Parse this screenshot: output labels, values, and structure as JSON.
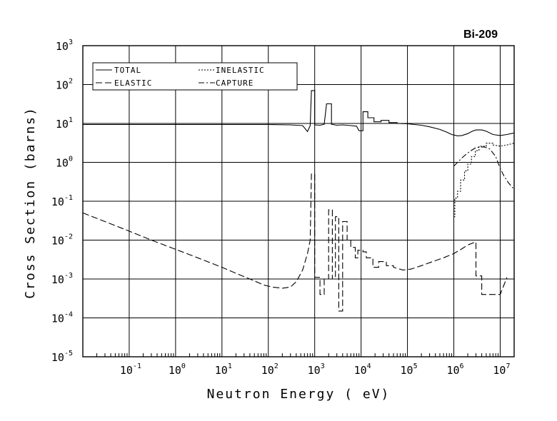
{
  "chart_data": {
    "type": "line",
    "title": "Bi-209",
    "xlabel": "Neutron Energy ( eV)",
    "ylabel": "Cross Section (barns)",
    "x_scale": "log",
    "y_scale": "log",
    "xlim": [
      0.01,
      20000000
    ],
    "ylim": [
      1e-05,
      1000
    ],
    "grid": true,
    "legend_position": "top-left",
    "x_tick_labels": [
      {
        "base": "10",
        "exp": "-1"
      },
      {
        "base": "10",
        "exp": "0"
      },
      {
        "base": "10",
        "exp": "1"
      },
      {
        "base": "10",
        "exp": "2"
      },
      {
        "base": "10",
        "exp": "3"
      },
      {
        "base": "10",
        "exp": "4"
      },
      {
        "base": "10",
        "exp": "5"
      },
      {
        "base": "10",
        "exp": "6"
      },
      {
        "base": "10",
        "exp": "7"
      }
    ],
    "y_tick_labels": [
      {
        "base": "10",
        "exp": "3"
      },
      {
        "base": "10",
        "exp": "2"
      },
      {
        "base": "10",
        "exp": "1"
      },
      {
        "base": "10",
        "exp": "0"
      },
      {
        "base": "10",
        "exp": "-1"
      },
      {
        "base": "10",
        "exp": "-2"
      },
      {
        "base": "10",
        "exp": "-3"
      },
      {
        "base": "10",
        "exp": "-4"
      },
      {
        "base": "10",
        "exp": "-5"
      }
    ],
    "series": [
      {
        "name": "TOTAL",
        "dash": "solid",
        "points": [
          [
            0.01,
            9.4
          ],
          [
            1,
            9.4
          ],
          [
            10,
            9.4
          ],
          [
            100,
            9.4
          ],
          [
            300,
            9.2
          ],
          [
            550,
            8.8
          ],
          [
            700,
            6.2
          ],
          [
            800,
            8.8
          ],
          [
            850,
            70
          ],
          [
            1000,
            70
          ],
          [
            1000,
            9.2
          ],
          [
            1300,
            9
          ],
          [
            1600,
            9.5
          ],
          [
            1800,
            32
          ],
          [
            2300,
            32
          ],
          [
            2300,
            9.5
          ],
          [
            3000,
            9
          ],
          [
            4000,
            9.2
          ],
          [
            6000,
            8.8
          ],
          [
            8000,
            8.5
          ],
          [
            9000,
            6.5
          ],
          [
            11000,
            6.5
          ],
          [
            11000,
            20
          ],
          [
            14000,
            20
          ],
          [
            14000,
            14
          ],
          [
            19000,
            14
          ],
          [
            19000,
            11
          ],
          [
            27000,
            11
          ],
          [
            27000,
            12
          ],
          [
            40000,
            12
          ],
          [
            40000,
            10.5
          ],
          [
            60000,
            10.5
          ],
          [
            60000,
            10
          ],
          [
            100000,
            9.8
          ],
          [
            200000,
            9
          ],
          [
            300000,
            8.2
          ],
          [
            500000,
            7
          ],
          [
            700000,
            6
          ],
          [
            900000,
            5.2
          ],
          [
            1200000,
            4.8
          ],
          [
            1500000,
            4.9
          ],
          [
            2000000,
            5.5
          ],
          [
            2500000,
            6.3
          ],
          [
            3000000,
            6.8
          ],
          [
            4000000,
            6.8
          ],
          [
            5000000,
            6.3
          ],
          [
            7000000,
            5.2
          ],
          [
            10000000,
            4.9
          ],
          [
            14000000,
            5.2
          ],
          [
            20000000,
            5.7
          ]
        ]
      },
      {
        "name": "ELASTIC",
        "dash": "long-dash",
        "points": [
          [
            0.01,
            0.05
          ],
          [
            0.03,
            0.03
          ],
          [
            0.1,
            0.017
          ],
          [
            0.3,
            0.01
          ],
          [
            1,
            0.0058
          ],
          [
            3,
            0.0035
          ],
          [
            10,
            0.002
          ],
          [
            20,
            0.0014
          ],
          [
            40,
            0.001
          ],
          [
            80,
            0.0007
          ],
          [
            120,
            0.00062
          ],
          [
            200,
            0.00058
          ],
          [
            300,
            0.00062
          ],
          [
            400,
            0.00085
          ],
          [
            550,
            0.0017
          ],
          [
            700,
            0.0045
          ],
          [
            800,
            0.01
          ],
          [
            850,
            0.5
          ],
          [
            1000,
            0.5
          ],
          [
            1000,
            0.0011
          ],
          [
            1300,
            0.0011
          ],
          [
            1300,
            0.0004
          ],
          [
            1600,
            0.0004
          ],
          [
            1600,
            0.001
          ],
          [
            2000,
            0.001
          ],
          [
            2000,
            0.06
          ],
          [
            2400,
            0.06
          ],
          [
            2400,
            0.001
          ],
          [
            2800,
            0.001
          ],
          [
            2800,
            0.04
          ],
          [
            3300,
            0.04
          ],
          [
            3300,
            0.00015
          ],
          [
            4000,
            0.00015
          ],
          [
            4000,
            0.03
          ],
          [
            5000,
            0.03
          ],
          [
            5000,
            0.01
          ],
          [
            6000,
            0.01
          ],
          [
            6000,
            0.0065
          ],
          [
            7500,
            0.0065
          ],
          [
            7500,
            0.0035
          ],
          [
            8500,
            0.0035
          ],
          [
            8500,
            0.0055
          ],
          [
            11000,
            0.0055
          ],
          [
            11000,
            0.005
          ],
          [
            13000,
            0.005
          ],
          [
            13000,
            0.0035
          ],
          [
            18000,
            0.0035
          ],
          [
            18000,
            0.002
          ],
          [
            24000,
            0.002
          ],
          [
            24000,
            0.0028
          ],
          [
            35000,
            0.0028
          ],
          [
            35000,
            0.0022
          ],
          [
            50000,
            0.0022
          ],
          [
            50000,
            0.002
          ],
          [
            80000,
            0.0017
          ],
          [
            120000,
            0.0018
          ],
          [
            200000,
            0.0022
          ],
          [
            350000,
            0.0028
          ],
          [
            600000,
            0.0035
          ],
          [
            1000000,
            0.0045
          ],
          [
            1500000,
            0.006
          ],
          [
            2000000,
            0.0075
          ],
          [
            3000000,
            0.009
          ],
          [
            3000000,
            0.0012
          ],
          [
            4000000,
            0.0012
          ],
          [
            4000000,
            0.0004
          ],
          [
            6000000,
            0.0004
          ],
          [
            10000000,
            0.0004
          ],
          [
            14000000,
            0.0011
          ]
        ]
      },
      {
        "name": "INELASTIC",
        "dash": "short-dash",
        "points": [
          [
            1000000,
            0.04
          ],
          [
            1050000,
            0.04
          ],
          [
            1050000,
            0.12
          ],
          [
            1200000,
            0.12
          ],
          [
            1200000,
            0.18
          ],
          [
            1400000,
            0.18
          ],
          [
            1400000,
            0.35
          ],
          [
            1700000,
            0.35
          ],
          [
            1700000,
            0.6
          ],
          [
            2000000,
            0.6
          ],
          [
            2000000,
            0.9
          ],
          [
            2400000,
            0.9
          ],
          [
            2400000,
            1.4
          ],
          [
            2900000,
            1.4
          ],
          [
            2900000,
            2
          ],
          [
            3500000,
            2
          ],
          [
            3500000,
            2.6
          ],
          [
            5000000,
            2.6
          ],
          [
            5000000,
            3.1
          ],
          [
            7000000,
            3.1
          ],
          [
            7000000,
            2.8
          ],
          [
            10000000,
            2.6
          ],
          [
            14000000,
            2.8
          ],
          [
            20000000,
            3.1
          ]
        ]
      },
      {
        "name": "CAPTURE",
        "dash": "dash-dot",
        "points": [
          [
            1000000,
            0.8
          ],
          [
            1200000,
            1
          ],
          [
            1600000,
            1.4
          ],
          [
            2200000,
            1.9
          ],
          [
            3000000,
            2.4
          ],
          [
            4500000,
            2.5
          ],
          [
            6000000,
            2.2
          ],
          [
            8000000,
            1.4
          ],
          [
            10000000,
            0.7
          ],
          [
            12000000,
            0.45
          ],
          [
            15000000,
            0.3
          ],
          [
            20000000,
            0.2
          ]
        ]
      }
    ]
  }
}
